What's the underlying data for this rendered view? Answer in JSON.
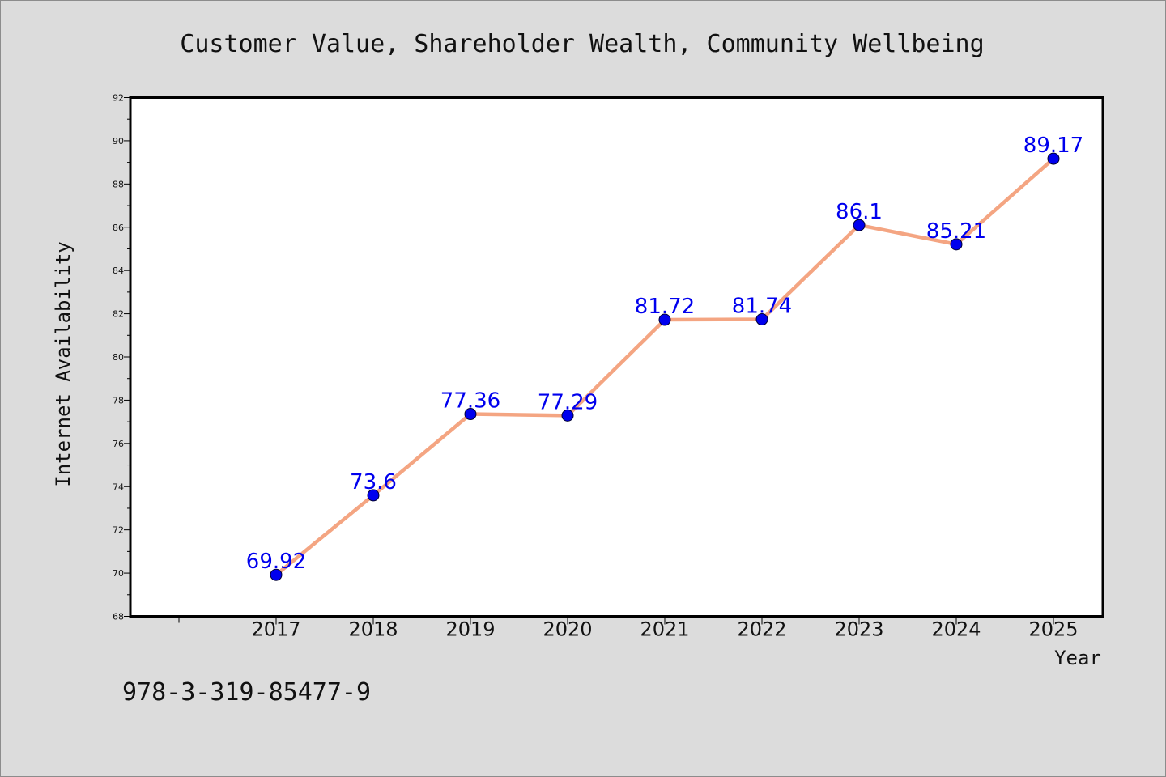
{
  "chart_data": {
    "type": "line",
    "title": "Customer Value, Shareholder Wealth, Community Wellbeing",
    "xlabel": "Year",
    "ylabel": "Internet Availability",
    "categories": [
      "2017",
      "2018",
      "2019",
      "2020",
      "2021",
      "2022",
      "2023",
      "2024",
      "2025"
    ],
    "series": [
      {
        "values": [
          69.92,
          73.6,
          77.36,
          77.29,
          81.72,
          81.74,
          86.1,
          85.21,
          89.17
        ],
        "data_labels": [
          "69.92",
          "73.6",
          "77.36",
          "77.29",
          "81.72",
          "81.74",
          "86.1",
          "85.21",
          "89.17"
        ],
        "line_color": "#f4a582",
        "marker_color": "#0000ee"
      }
    ],
    "ylim": [
      68,
      92
    ],
    "yticks": [
      "68",
      "70",
      "72",
      "74",
      "76",
      "78",
      "80",
      "82",
      "84",
      "86",
      "88",
      "90",
      "92"
    ],
    "grid": false,
    "legend": "none"
  },
  "footer": {
    "code": "978-3-319-85477-9"
  },
  "colors": {
    "background": "#dcdcdc",
    "plot_background": "#ffffff",
    "data_label": "#0000ee"
  }
}
